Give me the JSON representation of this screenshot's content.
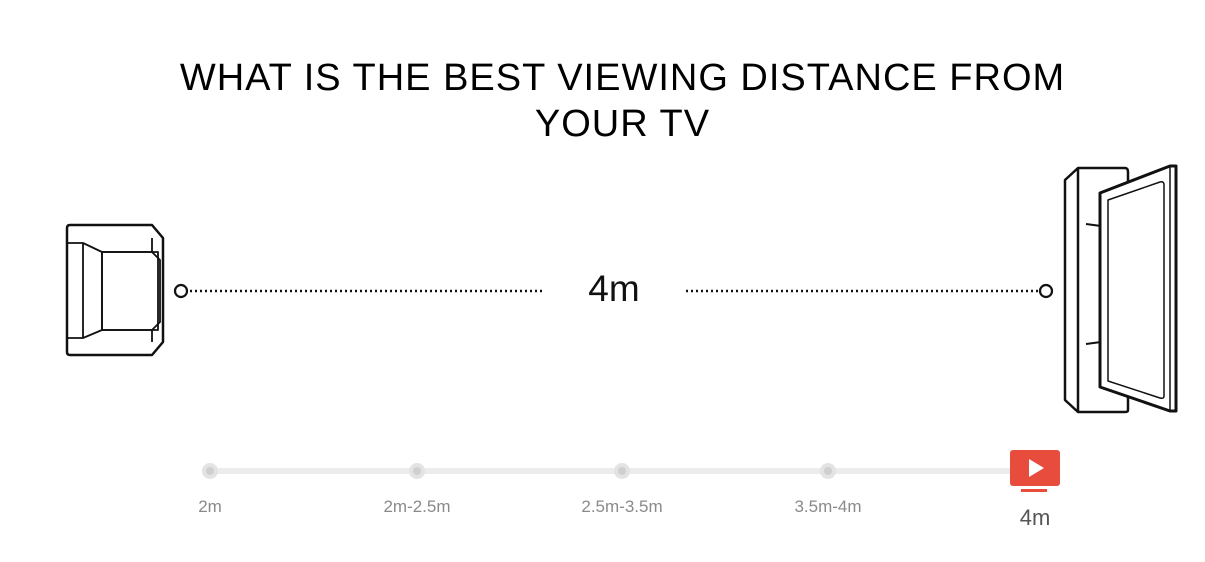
{
  "title": {
    "line1": "WHAT IS THE BEST VIEWING DISTANCE FROM",
    "line2": "YOUR TV"
  },
  "distance_display": "4m",
  "slider": {
    "options": [
      "2m",
      "2m-2.5m",
      "2.5m-3.5m",
      "3.5m-4m",
      "4m"
    ],
    "selected": "4m",
    "selected_index": 4,
    "active_icon": "tv-play-icon",
    "accent_color": "#e84c3d"
  }
}
